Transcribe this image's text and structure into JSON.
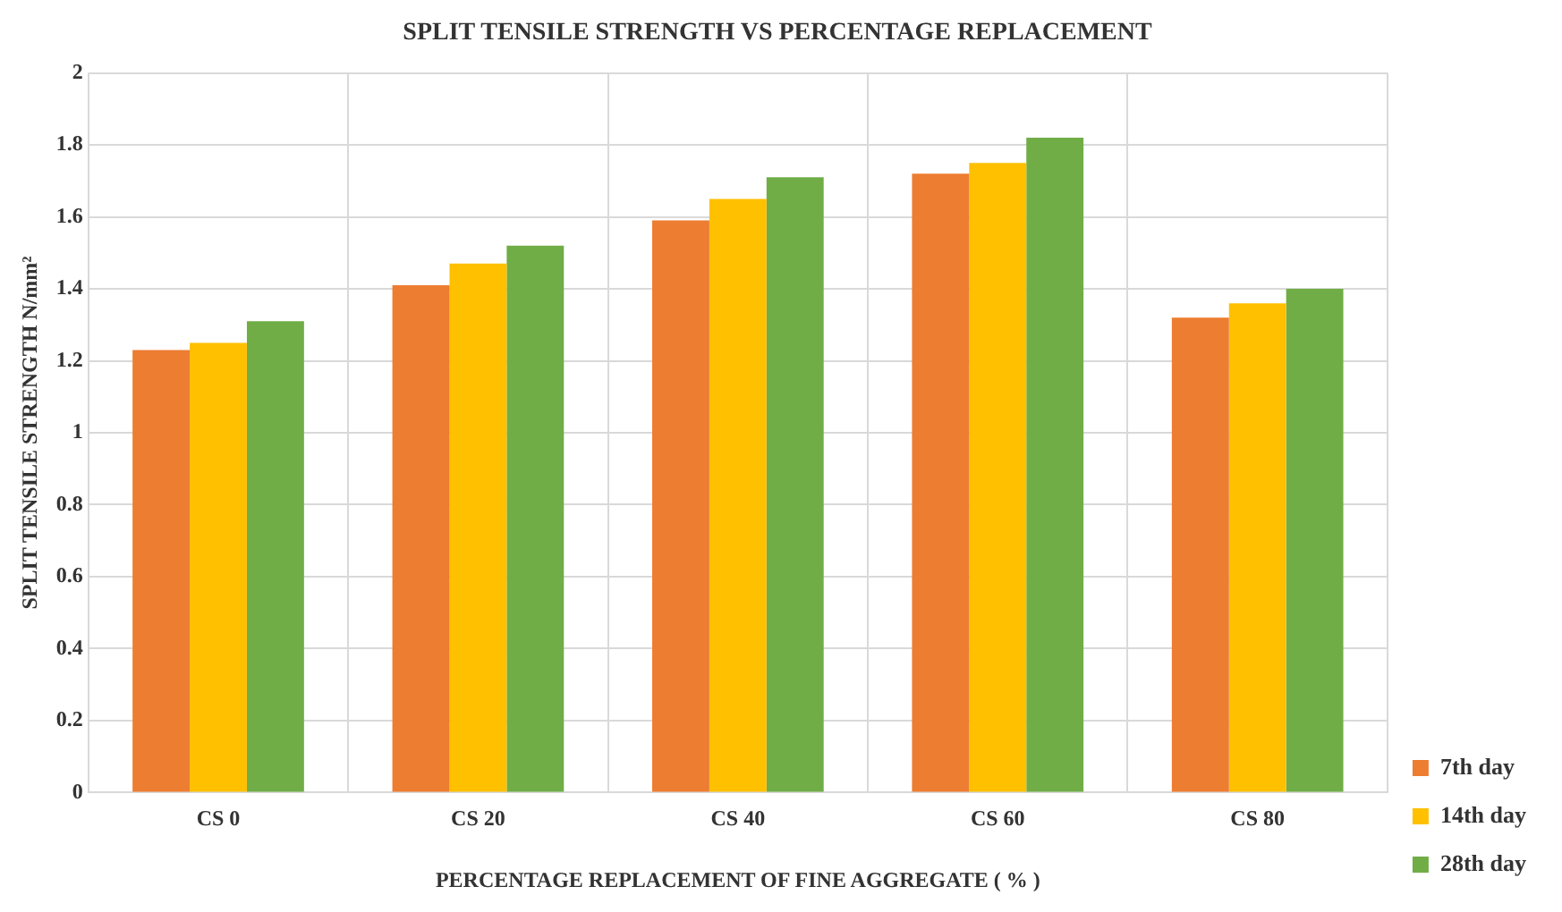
{
  "chart_data": {
    "type": "bar",
    "title": "SPLIT TENSILE STRENGTH VS PERCENTAGE REPLACEMENT",
    "xlabel": "PERCENTAGE REPLACEMENT OF FINE AGGREGATE ( % )",
    "ylabel": "SPLIT TENSILE STRENGTH N/mm²",
    "categories": [
      "CS 0",
      "CS 20",
      "CS 40",
      "CS 60",
      "CS 80"
    ],
    "series": [
      {
        "name": "7th day",
        "color": "#ed7d31",
        "values": [
          1.23,
          1.41,
          1.59,
          1.72,
          1.32
        ]
      },
      {
        "name": "14th day",
        "color": "#ffc000",
        "values": [
          1.25,
          1.47,
          1.65,
          1.75,
          1.36
        ]
      },
      {
        "name": "28th day",
        "color": "#70ad47",
        "values": [
          1.31,
          1.52,
          1.71,
          1.82,
          1.4
        ]
      }
    ],
    "ylim": [
      0,
      2
    ],
    "yticks": [
      0,
      0.2,
      0.4,
      0.6,
      0.8,
      1,
      1.2,
      1.4,
      1.6,
      1.8,
      2
    ],
    "grid": true,
    "legend": "bottom right"
  }
}
